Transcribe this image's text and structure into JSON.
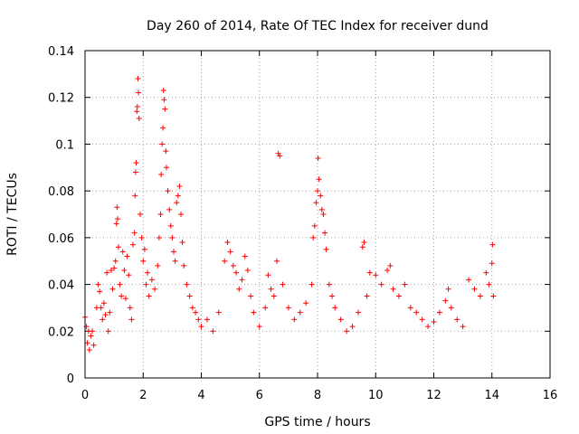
{
  "chart_data": {
    "type": "scatter",
    "title": "Day 260 of 2014, Rate Of TEC Index for receiver dund",
    "xlabel": "GPS time / hours",
    "ylabel": "ROTI / TECUs",
    "xlim": [
      0,
      16
    ],
    "ylim": [
      0,
      0.14
    ],
    "xticks": [
      0,
      2,
      4,
      6,
      8,
      10,
      12,
      14,
      16
    ],
    "yticks": [
      0,
      0.02,
      0.04,
      0.06,
      0.08,
      0.1,
      0.12,
      0.14
    ],
    "xtick_labels": [
      "0",
      "2",
      "4",
      "6",
      "8",
      "10",
      "12",
      "14",
      "16"
    ],
    "ytick_labels": [
      "0",
      "0.02",
      "0.04",
      "0.06",
      "0.08",
      "0.1",
      "0.12",
      "0.14"
    ],
    "grid": true,
    "marker": "+",
    "color": "#ff0000",
    "series": [
      {
        "name": "ROTI",
        "points": [
          [
            0.0,
            0.026
          ],
          [
            0.05,
            0.022
          ],
          [
            0.08,
            0.015
          ],
          [
            0.12,
            0.02
          ],
          [
            0.15,
            0.012
          ],
          [
            0.2,
            0.018
          ],
          [
            0.25,
            0.02
          ],
          [
            0.3,
            0.014
          ],
          [
            0.4,
            0.03
          ],
          [
            0.45,
            0.04
          ],
          [
            0.5,
            0.037
          ],
          [
            0.55,
            0.03
          ],
          [
            0.6,
            0.025
          ],
          [
            0.65,
            0.032
          ],
          [
            0.7,
            0.027
          ],
          [
            0.75,
            0.045
          ],
          [
            0.8,
            0.02
          ],
          [
            0.85,
            0.028
          ],
          [
            0.9,
            0.046
          ],
          [
            0.95,
            0.038
          ],
          [
            1.0,
            0.047
          ],
          [
            1.05,
            0.05
          ],
          [
            1.08,
            0.066
          ],
          [
            1.1,
            0.073
          ],
          [
            1.12,
            0.068
          ],
          [
            1.15,
            0.056
          ],
          [
            1.2,
            0.04
          ],
          [
            1.25,
            0.035
          ],
          [
            1.3,
            0.054
          ],
          [
            1.35,
            0.046
          ],
          [
            1.4,
            0.034
          ],
          [
            1.45,
            0.052
          ],
          [
            1.5,
            0.044
          ],
          [
            1.55,
            0.03
          ],
          [
            1.6,
            0.025
          ],
          [
            1.65,
            0.057
          ],
          [
            1.7,
            0.062
          ],
          [
            1.72,
            0.078
          ],
          [
            1.74,
            0.088
          ],
          [
            1.76,
            0.092
          ],
          [
            1.78,
            0.114
          ],
          [
            1.8,
            0.116
          ],
          [
            1.82,
            0.128
          ],
          [
            1.84,
            0.122
          ],
          [
            1.86,
            0.111
          ],
          [
            1.9,
            0.07
          ],
          [
            1.95,
            0.06
          ],
          [
            2.0,
            0.05
          ],
          [
            2.05,
            0.055
          ],
          [
            2.1,
            0.04
          ],
          [
            2.15,
            0.045
          ],
          [
            2.2,
            0.035
          ],
          [
            2.3,
            0.042
          ],
          [
            2.4,
            0.038
          ],
          [
            2.5,
            0.048
          ],
          [
            2.55,
            0.06
          ],
          [
            2.6,
            0.07
          ],
          [
            2.62,
            0.087
          ],
          [
            2.65,
            0.1
          ],
          [
            2.68,
            0.107
          ],
          [
            2.7,
            0.123
          ],
          [
            2.72,
            0.119
          ],
          [
            2.75,
            0.115
          ],
          [
            2.78,
            0.097
          ],
          [
            2.8,
            0.09
          ],
          [
            2.85,
            0.08
          ],
          [
            2.9,
            0.072
          ],
          [
            2.95,
            0.065
          ],
          [
            3.0,
            0.06
          ],
          [
            3.05,
            0.054
          ],
          [
            3.1,
            0.05
          ],
          [
            3.15,
            0.075
          ],
          [
            3.2,
            0.078
          ],
          [
            3.25,
            0.082
          ],
          [
            3.3,
            0.07
          ],
          [
            3.35,
            0.058
          ],
          [
            3.4,
            0.048
          ],
          [
            3.5,
            0.04
          ],
          [
            3.6,
            0.035
          ],
          [
            3.7,
            0.03
          ],
          [
            3.8,
            0.028
          ],
          [
            3.9,
            0.025
          ],
          [
            4.0,
            0.022
          ],
          [
            4.2,
            0.025
          ],
          [
            4.4,
            0.02
          ],
          [
            4.6,
            0.028
          ],
          [
            4.8,
            0.05
          ],
          [
            4.9,
            0.058
          ],
          [
            5.0,
            0.054
          ],
          [
            5.1,
            0.048
          ],
          [
            5.2,
            0.045
          ],
          [
            5.3,
            0.038
          ],
          [
            5.4,
            0.042
          ],
          [
            5.5,
            0.052
          ],
          [
            5.6,
            0.046
          ],
          [
            5.7,
            0.035
          ],
          [
            5.8,
            0.028
          ],
          [
            6.0,
            0.022
          ],
          [
            6.2,
            0.03
          ],
          [
            6.3,
            0.044
          ],
          [
            6.4,
            0.038
          ],
          [
            6.5,
            0.035
          ],
          [
            6.6,
            0.05
          ],
          [
            6.65,
            0.096
          ],
          [
            6.7,
            0.095
          ],
          [
            6.8,
            0.04
          ],
          [
            7.0,
            0.03
          ],
          [
            7.2,
            0.025
          ],
          [
            7.4,
            0.028
          ],
          [
            7.6,
            0.032
          ],
          [
            7.8,
            0.04
          ],
          [
            7.85,
            0.06
          ],
          [
            7.9,
            0.065
          ],
          [
            7.95,
            0.075
          ],
          [
            8.0,
            0.08
          ],
          [
            8.02,
            0.094
          ],
          [
            8.05,
            0.085
          ],
          [
            8.1,
            0.078
          ],
          [
            8.15,
            0.072
          ],
          [
            8.2,
            0.07
          ],
          [
            8.25,
            0.062
          ],
          [
            8.3,
            0.055
          ],
          [
            8.4,
            0.04
          ],
          [
            8.5,
            0.035
          ],
          [
            8.6,
            0.03
          ],
          [
            8.8,
            0.025
          ],
          [
            9.0,
            0.02
          ],
          [
            9.2,
            0.022
          ],
          [
            9.4,
            0.028
          ],
          [
            9.55,
            0.056
          ],
          [
            9.6,
            0.058
          ],
          [
            9.7,
            0.035
          ],
          [
            9.8,
            0.045
          ],
          [
            10.0,
            0.044
          ],
          [
            10.2,
            0.04
          ],
          [
            10.4,
            0.046
          ],
          [
            10.5,
            0.048
          ],
          [
            10.6,
            0.038
          ],
          [
            10.8,
            0.035
          ],
          [
            11.0,
            0.04
          ],
          [
            11.2,
            0.03
          ],
          [
            11.4,
            0.028
          ],
          [
            11.6,
            0.025
          ],
          [
            11.8,
            0.022
          ],
          [
            12.0,
            0.024
          ],
          [
            12.2,
            0.028
          ],
          [
            12.4,
            0.033
          ],
          [
            12.5,
            0.038
          ],
          [
            12.6,
            0.03
          ],
          [
            12.8,
            0.025
          ],
          [
            13.0,
            0.022
          ],
          [
            13.2,
            0.042
          ],
          [
            13.4,
            0.038
          ],
          [
            13.6,
            0.035
          ],
          [
            13.8,
            0.045
          ],
          [
            13.9,
            0.04
          ],
          [
            14.0,
            0.049
          ],
          [
            14.02,
            0.057
          ],
          [
            14.05,
            0.035
          ]
        ]
      }
    ]
  }
}
